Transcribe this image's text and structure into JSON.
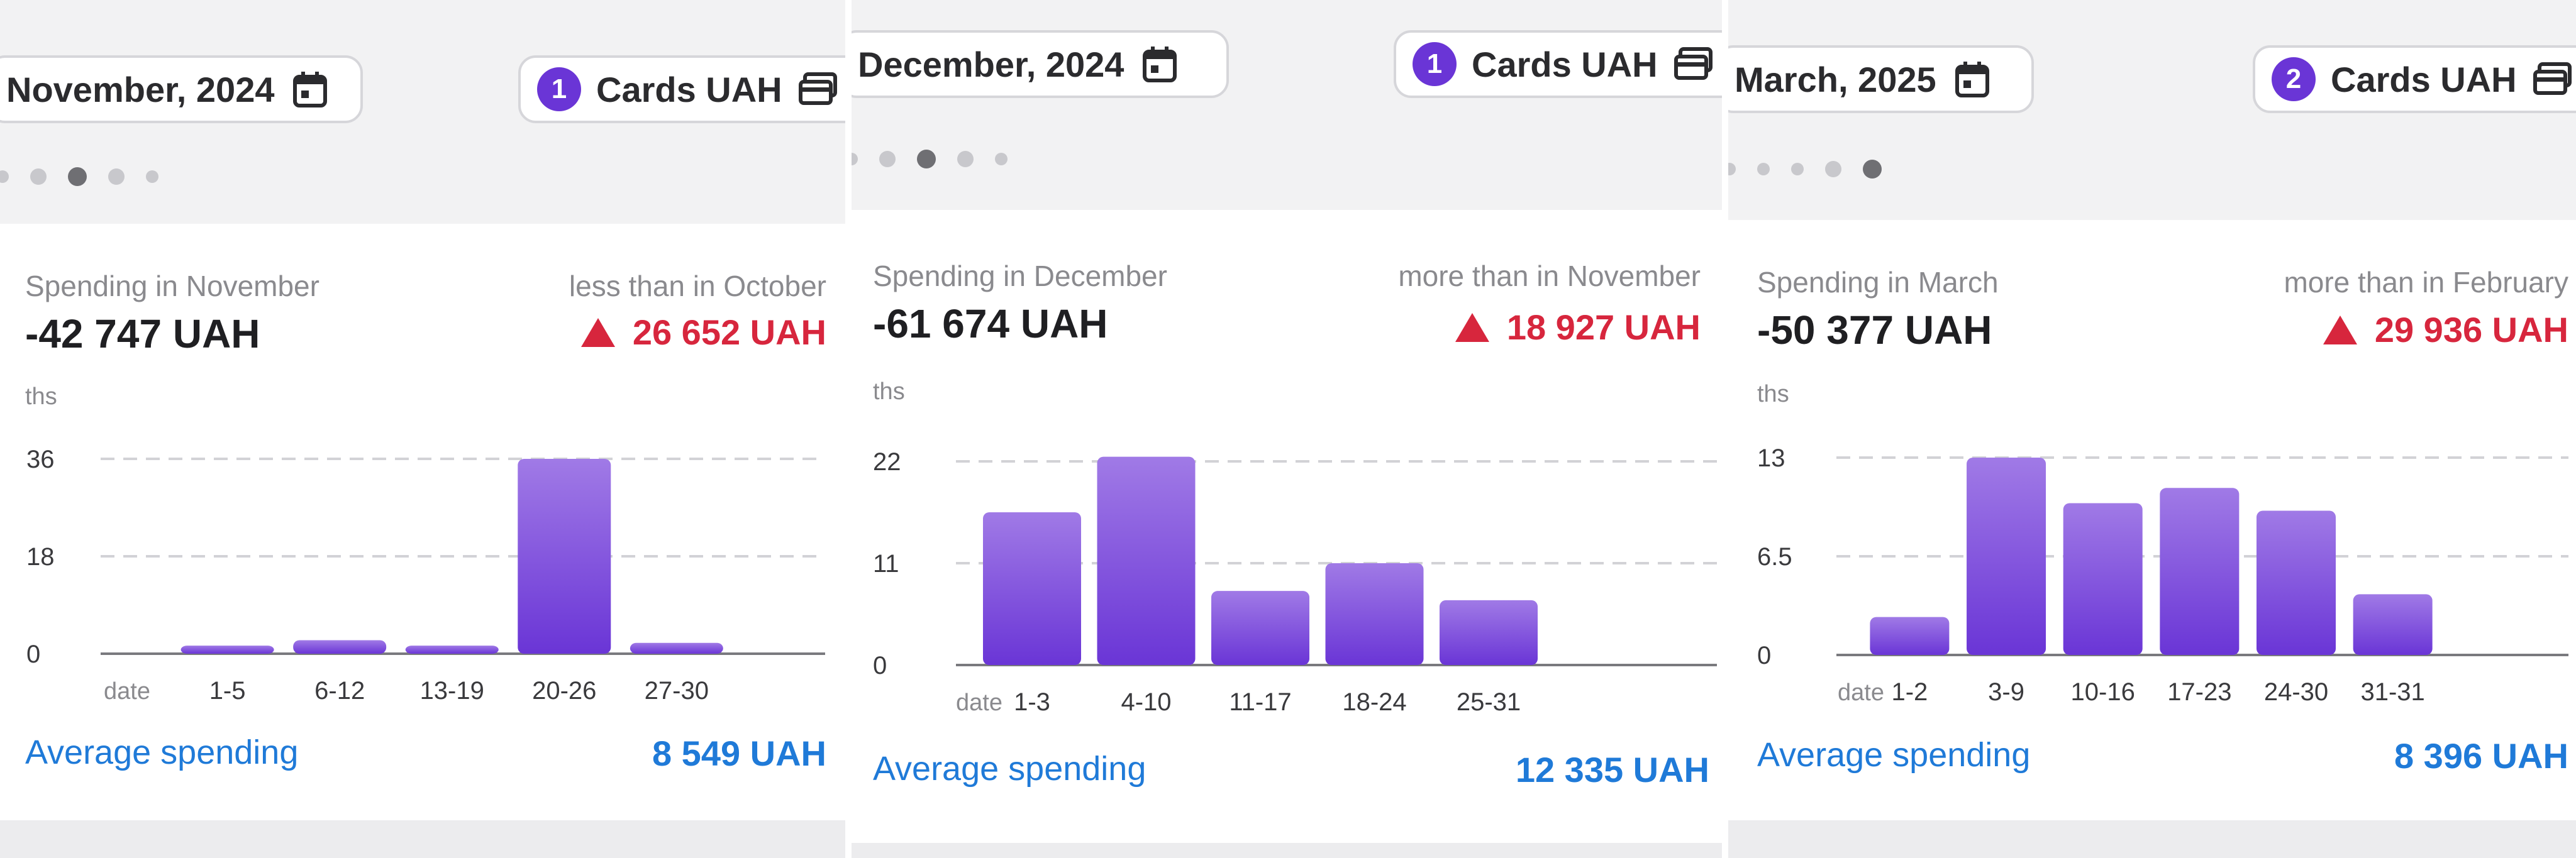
{
  "panels": [
    {
      "month_label": "November, 2024",
      "account_badge": "1",
      "account_label": "Cards UAH",
      "spending_label": "Spending in November",
      "spending_amount": "-42 747 UAH",
      "comparison_label": "less than in October",
      "comparison_amount": "26 652 UAH",
      "units_label": "ths",
      "average_label": "Average spending",
      "average_amount": "8 549 UAH",
      "pager": {
        "count": 5,
        "active_index": 2
      }
    },
    {
      "month_label": "December, 2024",
      "account_badge": "1",
      "account_label": "Cards UAH",
      "spending_label": "Spending in December",
      "spending_amount": "-61 674 UAH",
      "comparison_label": "more than in November",
      "comparison_amount": "18 927 UAH",
      "units_label": "ths",
      "average_label": "Average spending",
      "average_amount": "12 335 UAH",
      "pager": {
        "count": 5,
        "active_index": 2
      }
    },
    {
      "month_label": "March, 2025",
      "account_badge": "2",
      "account_label": "Cards UAH",
      "spending_label": "Spending in March",
      "spending_amount": "-50 377 UAH",
      "comparison_label": "more than in February",
      "comparison_amount": "29 936 UAH",
      "units_label": "ths",
      "average_label": "Average spending",
      "average_amount": "8 396 UAH",
      "pager": {
        "count": 5,
        "active_index": 4
      }
    }
  ],
  "colors": {
    "accent_purple": "#6a35d6",
    "bar_top": "#a07ae6",
    "bar_bottom": "#6a35d6",
    "negative_red": "#d7263d",
    "link_blue": "#1f7ad8"
  },
  "chart_data": [
    {
      "type": "bar",
      "xlabel": "date",
      "ylabel": "ths",
      "categories": [
        "1-5",
        "6-12",
        "13-19",
        "20-26",
        "27-30"
      ],
      "values": [
        1.5,
        2.5,
        1.5,
        36,
        2
      ],
      "ylim": [
        0,
        36
      ],
      "yticks": [
        "0",
        "18",
        "36"
      ],
      "grid": true
    },
    {
      "type": "bar",
      "xlabel": "date",
      "ylabel": "ths",
      "categories": [
        "1-3",
        "4-10",
        "11-17",
        "18-24",
        "25-31"
      ],
      "values": [
        16.5,
        22.5,
        8,
        11,
        7
      ],
      "ylim": [
        0,
        22
      ],
      "yticks": [
        "0",
        "11",
        "22"
      ],
      "grid": true
    },
    {
      "type": "bar",
      "xlabel": "date",
      "ylabel": "ths",
      "categories": [
        "1-2",
        "3-9",
        "10-16",
        "17-23",
        "24-30",
        "31-31"
      ],
      "values": [
        2.5,
        13,
        10,
        11,
        9.5,
        4
      ],
      "ylim": [
        0,
        13
      ],
      "yticks": [
        "0",
        "6.5",
        "13"
      ],
      "grid": true
    }
  ]
}
